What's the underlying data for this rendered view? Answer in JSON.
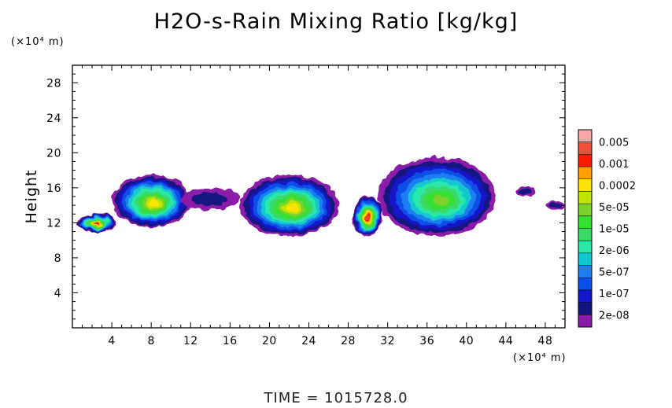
{
  "title": "H2O-s-Rain Mixing Ratio [kg/kg]",
  "y_unit": "(×10⁴ m)",
  "x_unit": "(×10⁴ m)",
  "footer": "TIME = 1015728.0",
  "chart_data": {
    "type": "heatmap",
    "ylabel": "Height",
    "xlabel": "",
    "xlim": [
      0,
      50
    ],
    "ylim": [
      0,
      30
    ],
    "x_ticks": [
      "4",
      "8",
      "12",
      "16",
      "20",
      "24",
      "28",
      "32",
      "36",
      "40",
      "44",
      "48"
    ],
    "y_ticks": [
      "4",
      "8",
      "12",
      "16",
      "20",
      "24",
      "28"
    ],
    "x_tick_values": [
      4,
      8,
      12,
      16,
      20,
      24,
      28,
      32,
      36,
      40,
      44,
      48
    ],
    "y_tick_values": [
      4,
      8,
      12,
      16,
      20,
      24,
      28
    ],
    "colorbar": {
      "labels": [
        "0.005",
        "0.001",
        "0.0002",
        "5e-05",
        "1e-05",
        "2e-06",
        "5e-07",
        "1e-07",
        "2e-08"
      ],
      "colors_top_to_bottom": [
        "#f7a7a7",
        "#ef4f3f",
        "#ff1a00",
        "#ffa000",
        "#ffe300",
        "#bfe600",
        "#7cd12e",
        "#35e030",
        "#3bd86a",
        "#2ae8a8",
        "#13c7d2",
        "#1c7ff0",
        "#0a4fe6",
        "#1417c8",
        "#131480",
        "#8a1aa8"
      ]
    },
    "cloud_clusters": [
      {
        "x_range": [
          0.5,
          4.5
        ],
        "y_range": [
          11,
          13
        ],
        "peak": "0.0002"
      },
      {
        "x_range": [
          4,
          12
        ],
        "y_range": [
          11.5,
          17.5
        ],
        "peak": "5e-05"
      },
      {
        "x_range": [
          11,
          17
        ],
        "y_range": [
          13.5,
          16
        ],
        "peak": "2e-08"
      },
      {
        "x_range": [
          17,
          27
        ],
        "y_range": [
          10.5,
          17.5
        ],
        "peak": "5e-05"
      },
      {
        "x_range": [
          28.5,
          31.5
        ],
        "y_range": [
          10.5,
          15
        ],
        "peak": "0.001"
      },
      {
        "x_range": [
          31,
          43
        ],
        "y_range": [
          10.5,
          19.5
        ],
        "peak": "1e-05"
      },
      {
        "x_range": [
          45,
          47
        ],
        "y_range": [
          15,
          16
        ],
        "peak": "2e-08"
      },
      {
        "x_range": [
          48,
          50
        ],
        "y_range": [
          13.5,
          14.5
        ],
        "peak": "2e-08"
      }
    ]
  }
}
